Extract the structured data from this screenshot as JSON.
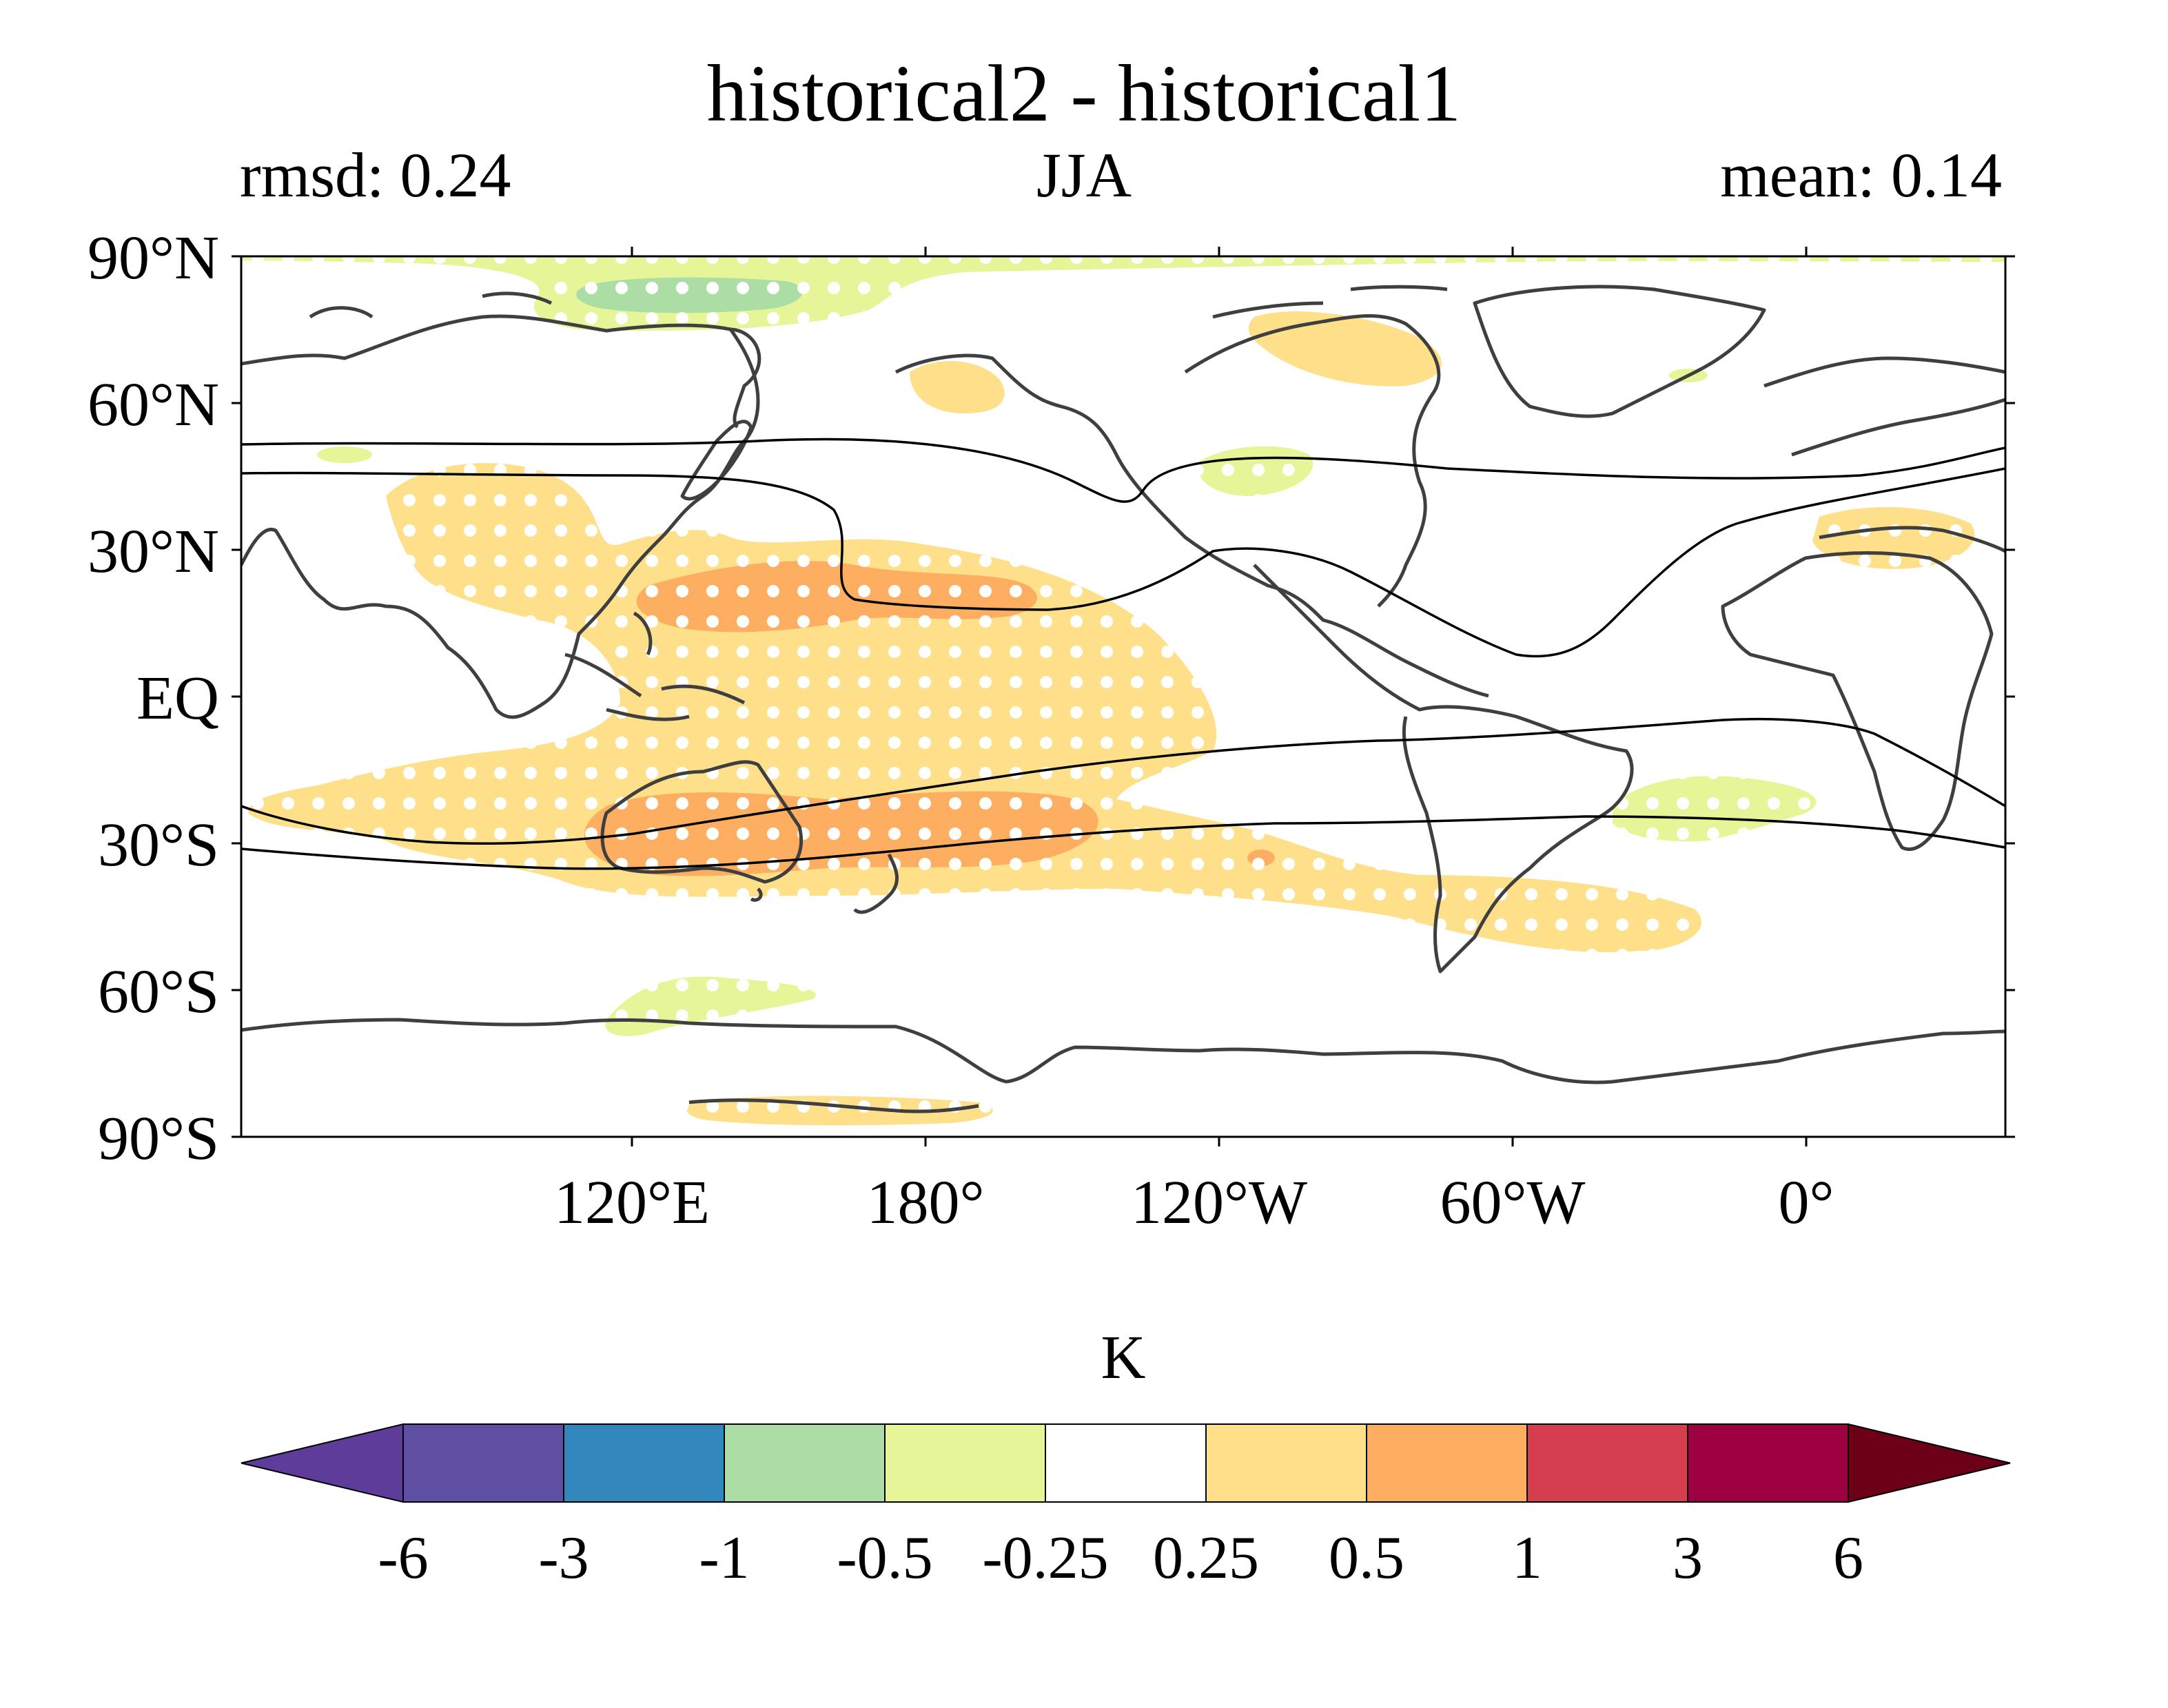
{
  "figure": {
    "title": "historical2 - historical1",
    "left_label": "rmsd: 0.24",
    "center_label": "JJA",
    "right_label": "mean: 0.14"
  },
  "map": {
    "y_ticks": [
      "90°N",
      "60°N",
      "30°N",
      "EQ",
      "30°S",
      "60°S",
      "90°S"
    ],
    "x_ticks": [
      "120°E",
      "180°",
      "120°W",
      "60°W",
      "0°"
    ],
    "land_color": "#3f3f3f",
    "contour_color": "#000000",
    "stipple_color": "#ffffff"
  },
  "colorbar": {
    "label": "K",
    "ticks": [
      "-6",
      "-3",
      "-1",
      "-0.5",
      "-0.25",
      "0.25",
      "0.5",
      "1",
      "3",
      "6"
    ],
    "colors": [
      "#5e3c99",
      "#5e4fa2",
      "#3288bd",
      "#abdda4",
      "#e6f598",
      "#ffffff",
      "#fee08b",
      "#fdae61",
      "#d53e4f",
      "#9e0142",
      "#6b0017"
    ]
  }
}
